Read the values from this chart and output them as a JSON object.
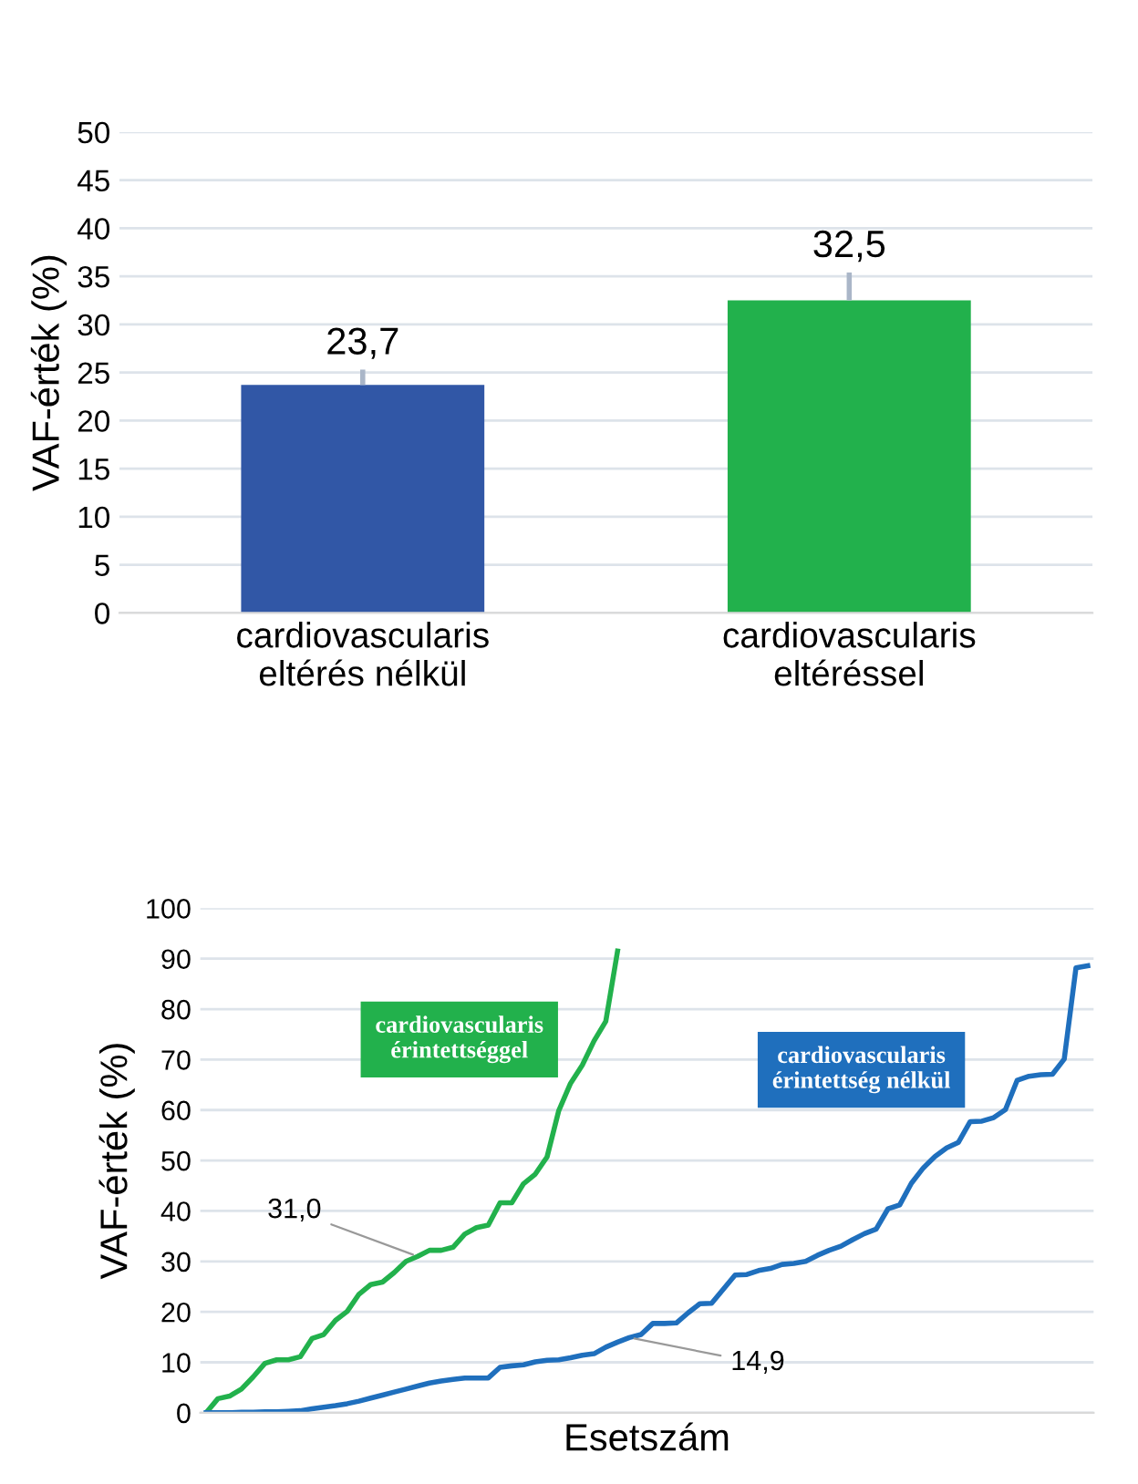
{
  "chart_data": [
    {
      "type": "bar",
      "ylabel": "VAF-érték (%)",
      "categories": [
        "cardiovascularis\neltérés nélkül",
        "cardiovascularis\neltéréssel"
      ],
      "values": [
        23.7,
        32.5
      ],
      "colors": [
        "#3157a6",
        "#22b14c"
      ],
      "errors": [
        [
          23.7,
          25.3
        ],
        [
          32.5,
          35.4
        ]
      ],
      "value_labels": [
        "23,7",
        "32,5"
      ],
      "ylim": [
        0,
        50
      ],
      "yticks": [
        0,
        5,
        10,
        15,
        20,
        25,
        30,
        35,
        40,
        45,
        50
      ],
      "grid": "y"
    },
    {
      "type": "line",
      "xlabel": "Esetszám",
      "ylabel": "VAF-érték (%)",
      "categories": [
        null,
        null,
        null,
        null,
        null,
        null,
        null,
        null,
        null,
        null,
        null,
        null,
        null,
        null,
        null,
        null,
        null,
        null,
        null,
        null,
        null,
        null,
        null,
        null,
        null,
        null,
        null,
        null,
        null,
        null,
        null,
        null,
        null,
        null,
        null,
        null,
        null,
        null,
        null,
        null,
        null,
        null,
        null,
        null,
        null,
        null,
        null,
        null,
        null,
        null,
        null,
        null,
        null,
        null,
        null,
        null,
        null,
        null,
        null,
        null,
        null,
        null,
        null,
        null,
        null,
        null,
        null,
        null,
        null,
        null,
        null,
        null,
        null,
        null,
        null,
        null
      ],
      "series": [
        {
          "name": "cardiovascularis\nérintettséggel",
          "color": "#22b14c",
          "values": [
            0,
            2.8,
            3.3,
            4.7,
            7.1,
            9.8,
            10.5,
            10.5,
            11.1,
            14.7,
            15.5,
            18.3,
            20.1,
            23.5,
            25.4,
            25.9,
            27.8,
            30.0,
            31.0,
            32.2,
            32.2,
            32.8,
            35.4,
            36.7,
            37.2,
            41.6,
            41.6,
            45.4,
            47.3,
            50.7,
            59.9,
            65.3,
            68.9,
            73.7,
            77.6,
            91.5,
            null,
            null,
            null,
            null,
            null,
            null,
            null,
            null,
            null,
            null,
            null,
            null,
            null,
            null,
            null,
            null,
            null,
            null,
            null,
            null,
            null,
            null,
            null,
            null,
            null,
            null,
            null,
            null,
            null,
            null,
            null,
            null,
            null,
            null,
            null,
            null,
            null,
            null,
            null,
            null
          ],
          "value_labels": [
            null,
            null,
            null,
            null,
            null,
            null,
            null,
            null,
            null,
            null,
            null,
            null,
            null,
            null,
            null,
            null,
            null,
            null,
            "31,0",
            null,
            null,
            null,
            null,
            null,
            null,
            null,
            null,
            null,
            null,
            null,
            null,
            null,
            null,
            null,
            null,
            null,
            null,
            null,
            null,
            null,
            null,
            null,
            null,
            null,
            null,
            null,
            null,
            null,
            null,
            null,
            null,
            null,
            null,
            null,
            null,
            null,
            null,
            null,
            null,
            null,
            null,
            null,
            null,
            null,
            null,
            null,
            null,
            null,
            null,
            null,
            null,
            null,
            null,
            null,
            null,
            null
          ]
        },
        {
          "name": "cardiovascularis\nérintettség nélkül",
          "color": "#1f6fbd",
          "values": [
            0,
            0,
            0,
            0.1,
            0.1,
            0.2,
            0.2,
            0.3,
            0.4,
            0.8,
            1.1,
            1.4,
            1.8,
            2.3,
            2.9,
            3.5,
            4.1,
            4.7,
            5.3,
            5.9,
            6.3,
            6.6,
            6.9,
            6.9,
            6.9,
            9.0,
            9.3,
            9.5,
            10.1,
            10.4,
            10.5,
            10.9,
            11.4,
            11.7,
            13.0,
            14.0,
            14.9,
            15.5,
            17.7,
            17.7,
            17.8,
            19.8,
            21.6,
            21.7,
            24.5,
            27.3,
            27.4,
            28.2,
            28.6,
            29.4,
            29.6,
            30.0,
            31.2,
            32.2,
            33.0,
            34.3,
            35.5,
            36.4,
            40.4,
            41.2,
            45.5,
            48.5,
            50.8,
            52.5,
            53.6,
            57.7,
            57.8,
            58.5,
            60.1,
            65.9,
            66.7,
            67.0,
            67.1,
            70.1,
            88.2,
            88.6
          ],
          "value_labels": [
            null,
            null,
            null,
            null,
            null,
            null,
            null,
            null,
            null,
            null,
            null,
            null,
            null,
            null,
            null,
            null,
            null,
            null,
            null,
            null,
            null,
            null,
            null,
            null,
            null,
            null,
            null,
            null,
            null,
            null,
            null,
            null,
            null,
            null,
            null,
            null,
            "14,9",
            null,
            null,
            null,
            null,
            null,
            null,
            null,
            null,
            null,
            null,
            null,
            null,
            null,
            null,
            null,
            null,
            null,
            null,
            null,
            null,
            null,
            null,
            null,
            null,
            null,
            null,
            null,
            null,
            null,
            null,
            null,
            null,
            null,
            null,
            null,
            null,
            null,
            null,
            null
          ]
        }
      ],
      "ylim": [
        0,
        100
      ],
      "yticks": [
        0,
        10,
        20,
        30,
        40,
        50,
        60,
        70,
        80,
        90,
        100
      ],
      "grid": "y",
      "legend": false,
      "tick_labels": "y"
    }
  ]
}
